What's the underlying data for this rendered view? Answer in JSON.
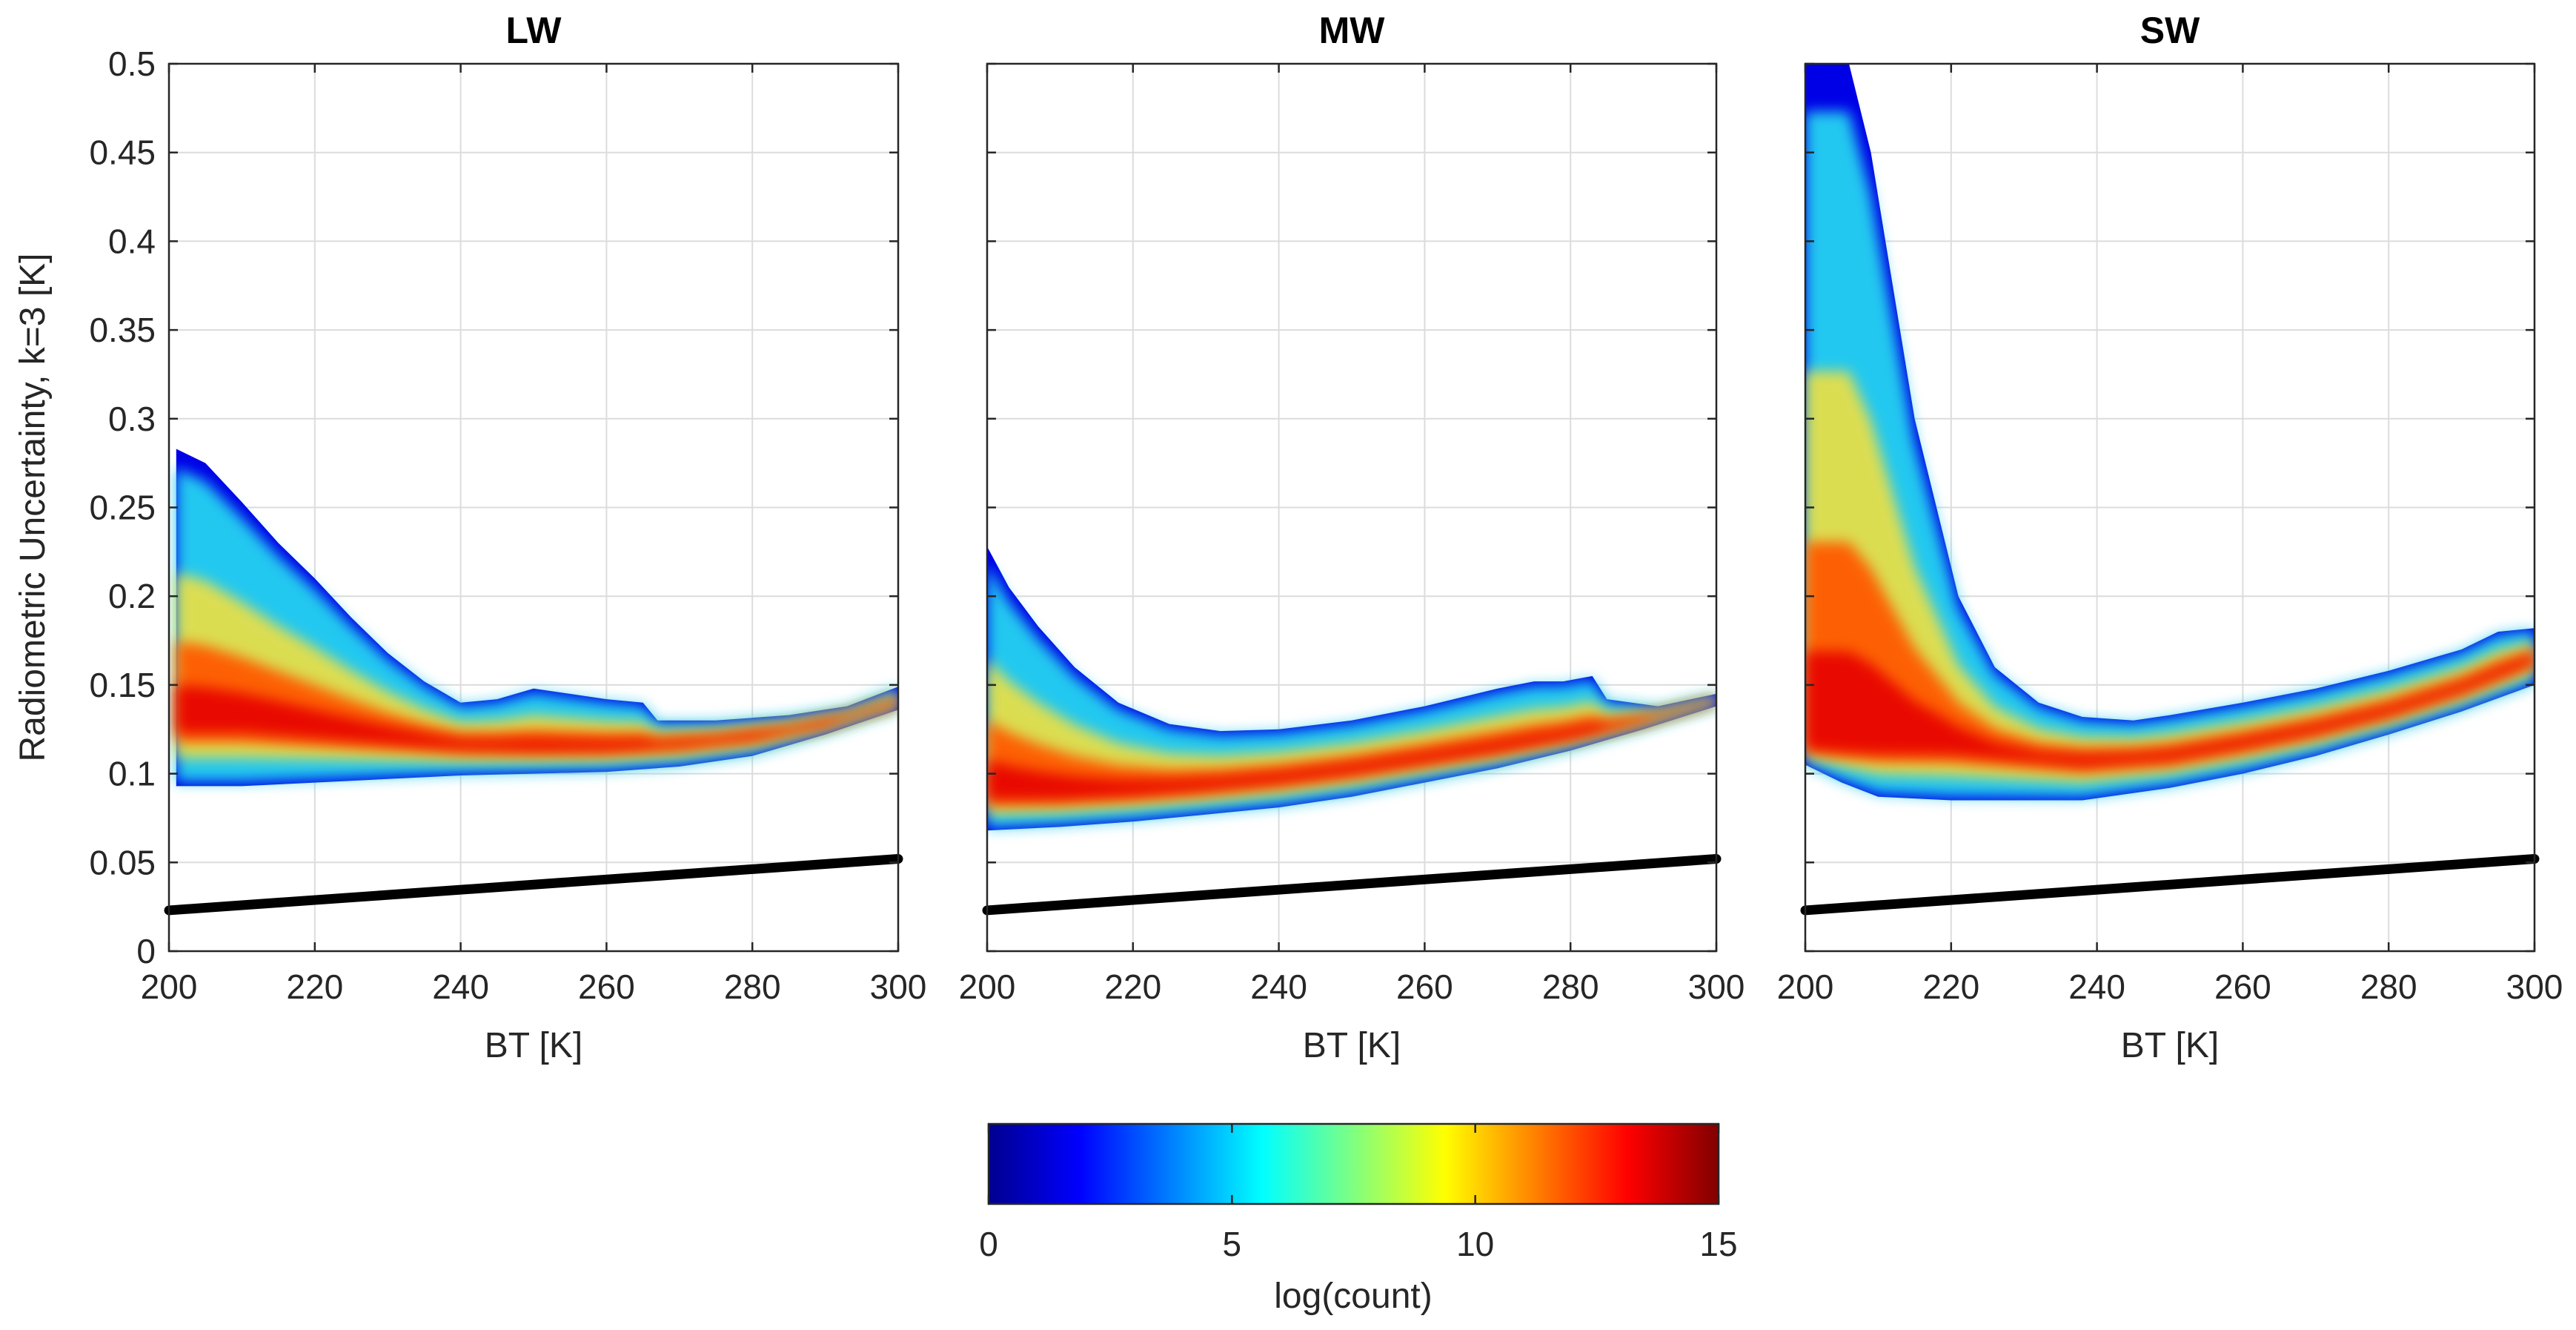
{
  "chart_data": {
    "type": "heatmap",
    "panels": [
      {
        "title": "LW",
        "xlabel": "BT [K]",
        "ylabel": "Radiometric Uncertainty, k=3 [K]",
        "xlim": [
          200,
          300
        ],
        "ylim": [
          0,
          0.5
        ],
        "xticks": [
          200,
          220,
          240,
          260,
          280,
          300
        ],
        "yticks": [
          0,
          0.05,
          0.1,
          0.15,
          0.2,
          0.25,
          0.3,
          0.35,
          0.4,
          0.45,
          0.5
        ],
        "xtick_labels": [
          "200",
          "220",
          "240",
          "260",
          "280",
          "300"
        ],
        "ytick_labels": [
          "0",
          "0.05",
          "0.1",
          "0.15",
          "0.2",
          "0.25",
          "0.3",
          "0.35",
          "0.4",
          "0.45",
          "0.5"
        ],
        "reference_line": {
          "x": [
            200,
            300
          ],
          "y": [
            0.023,
            0.052
          ]
        },
        "density_region": {
          "upper": [
            [
              201,
              0.283
            ],
            [
              205,
              0.275
            ],
            [
              210,
              0.253
            ],
            [
              215,
              0.23
            ],
            [
              220,
              0.21
            ],
            [
              225,
              0.188
            ],
            [
              230,
              0.168
            ],
            [
              235,
              0.152
            ],
            [
              240,
              0.14
            ],
            [
              245,
              0.142
            ],
            [
              250,
              0.148
            ],
            [
              255,
              0.145
            ],
            [
              260,
              0.142
            ],
            [
              265,
              0.14
            ],
            [
              267,
              0.13
            ],
            [
              275,
              0.13
            ],
            [
              285,
              0.133
            ],
            [
              293,
              0.138
            ],
            [
              300,
              0.149
            ]
          ],
          "lower": [
            [
              201,
              0.093
            ],
            [
              210,
              0.093
            ],
            [
              220,
              0.095
            ],
            [
              230,
              0.097
            ],
            [
              240,
              0.099
            ],
            [
              250,
              0.1
            ],
            [
              260,
              0.101
            ],
            [
              270,
              0.104
            ],
            [
              280,
              0.11
            ],
            [
              290,
              0.122
            ],
            [
              300,
              0.136
            ]
          ],
          "core": [
            [
              212,
              0.128
            ],
            [
              220,
              0.124
            ],
            [
              230,
              0.12
            ],
            [
              240,
              0.116
            ],
            [
              250,
              0.115
            ],
            [
              260,
              0.115
            ],
            [
              270,
              0.117
            ],
            [
              280,
              0.121
            ],
            [
              290,
              0.128
            ],
            [
              300,
              0.14
            ]
          ]
        }
      },
      {
        "title": "MW",
        "xlabel": "BT [K]",
        "xlim": [
          200,
          300
        ],
        "ylim": [
          0,
          0.5
        ],
        "xticks": [
          200,
          220,
          240,
          260,
          280,
          300
        ],
        "yticks": [
          0,
          0.05,
          0.1,
          0.15,
          0.2,
          0.25,
          0.3,
          0.35,
          0.4,
          0.45,
          0.5
        ],
        "xtick_labels": [
          "200",
          "220",
          "240",
          "260",
          "280",
          "300"
        ],
        "reference_line": {
          "x": [
            200,
            300
          ],
          "y": [
            0.023,
            0.052
          ]
        },
        "density_region": {
          "upper": [
            [
              200,
              0.228
            ],
            [
              203,
              0.205
            ],
            [
              207,
              0.183
            ],
            [
              212,
              0.16
            ],
            [
              218,
              0.14
            ],
            [
              225,
              0.128
            ],
            [
              232,
              0.124
            ],
            [
              240,
              0.125
            ],
            [
              250,
              0.13
            ],
            [
              260,
              0.138
            ],
            [
              270,
              0.148
            ],
            [
              275,
              0.152
            ],
            [
              279,
              0.152
            ],
            [
              283,
              0.155
            ],
            [
              285,
              0.142
            ],
            [
              292,
              0.138
            ],
            [
              300,
              0.145
            ]
          ],
          "lower": [
            [
              200,
              0.068
            ],
            [
              210,
              0.07
            ],
            [
              220,
              0.073
            ],
            [
              230,
              0.077
            ],
            [
              240,
              0.081
            ],
            [
              250,
              0.087
            ],
            [
              260,
              0.095
            ],
            [
              270,
              0.103
            ],
            [
              280,
              0.113
            ],
            [
              290,
              0.125
            ],
            [
              300,
              0.138
            ]
          ],
          "core": [
            [
              210,
              0.088
            ],
            [
              220,
              0.09
            ],
            [
              230,
              0.093
            ],
            [
              240,
              0.097
            ],
            [
              250,
              0.102
            ],
            [
              260,
              0.108
            ],
            [
              270,
              0.114
            ],
            [
              280,
              0.121
            ],
            [
              290,
              0.13
            ],
            [
              300,
              0.141
            ]
          ]
        }
      },
      {
        "title": "SW",
        "xlabel": "BT [K]",
        "xlim": [
          200,
          300
        ],
        "ylim": [
          0,
          0.5
        ],
        "xticks": [
          200,
          220,
          240,
          260,
          280,
          300
        ],
        "yticks": [
          0,
          0.05,
          0.1,
          0.15,
          0.2,
          0.25,
          0.3,
          0.35,
          0.4,
          0.45,
          0.5
        ],
        "xtick_labels": [
          "200",
          "220",
          "240",
          "260",
          "280",
          "300"
        ],
        "reference_line": {
          "x": [
            200,
            300
          ],
          "y": [
            0.023,
            0.052
          ]
        },
        "density_region": {
          "upper": [
            [
              200,
              0.5
            ],
            [
              206,
              0.5
            ],
            [
              209,
              0.45
            ],
            [
              211,
              0.4
            ],
            [
              213,
              0.35
            ],
            [
              215,
              0.3
            ],
            [
              218,
              0.25
            ],
            [
              221,
              0.2
            ],
            [
              226,
              0.16
            ],
            [
              232,
              0.14
            ],
            [
              238,
              0.132
            ],
            [
              245,
              0.13
            ],
            [
              250,
              0.133
            ],
            [
              260,
              0.14
            ],
            [
              270,
              0.148
            ],
            [
              280,
              0.158
            ],
            [
              290,
              0.17
            ],
            [
              295,
              0.18
            ],
            [
              300,
              0.182
            ]
          ],
          "lower": [
            [
              200,
              0.105
            ],
            [
              205,
              0.095
            ],
            [
              210,
              0.087
            ],
            [
              220,
              0.085
            ],
            [
              238,
              0.085
            ],
            [
              250,
              0.092
            ],
            [
              260,
              0.1
            ],
            [
              270,
              0.11
            ],
            [
              280,
              0.122
            ],
            [
              290,
              0.135
            ],
            [
              300,
              0.15
            ]
          ],
          "core": [
            [
              220,
              0.115
            ],
            [
              230,
              0.108
            ],
            [
              240,
              0.107
            ],
            [
              250,
              0.11
            ],
            [
              260,
              0.117
            ],
            [
              270,
              0.125
            ],
            [
              280,
              0.135
            ],
            [
              290,
              0.148
            ],
            [
              300,
              0.165
            ]
          ]
        }
      }
    ],
    "colorbar": {
      "label": "log(count)",
      "range": [
        0,
        15
      ],
      "ticks": [
        0,
        5,
        10,
        15
      ],
      "tick_labels": [
        "0",
        "5",
        "10",
        "15"
      ],
      "colormap": "jet",
      "colormap_stops": [
        "#00008f",
        "#0000ff",
        "#00ffff",
        "#ffff00",
        "#ff0000",
        "#800000"
      ]
    },
    "density_colors": {
      "outer": "#0000e6",
      "mid": "#20c8f0",
      "inner": "#f0e040",
      "core": "#ff5a00",
      "peak": "#e60000"
    }
  }
}
